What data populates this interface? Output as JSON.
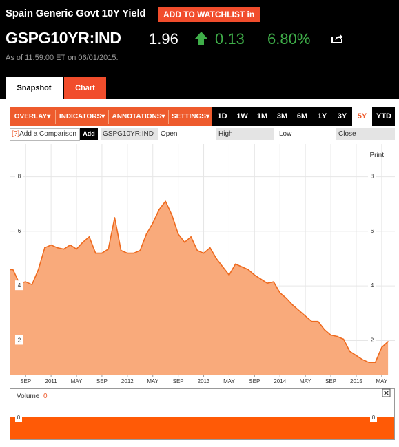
{
  "header": {
    "title": "Spain Generic Govt 10Y Yield",
    "watchlist_label": "ADD TO WATCHLIST in",
    "ticker": "GSPG10YR:IND",
    "price": "1.96",
    "change": "0.13",
    "percent": "6.80%",
    "as_of": "As of 11:59:00 ET on 06/01/2015.",
    "up_color": "#3fae49",
    "icons": [
      "up-arrow-icon",
      "share-icon"
    ]
  },
  "tabs": [
    {
      "label": "Snapshot",
      "active": false
    },
    {
      "label": "Chart",
      "active": true
    }
  ],
  "toolbar": {
    "menus": [
      "OVERLAY",
      "INDICATORS",
      "ANNOTATIONS",
      "SETTINGS"
    ],
    "ranges": [
      "1D",
      "1W",
      "1M",
      "3M",
      "6M",
      "1Y",
      "3Y",
      "5Y",
      "YTD"
    ],
    "active_range": "5Y",
    "accent": "#ee5b2d"
  },
  "legend_row": {
    "compare_placeholder": "Add a Comparison",
    "compare_icon": "[?]",
    "add_label": "Add",
    "symbol": "GSPG10YR:IND",
    "open": "Open",
    "high": "High",
    "low": "Low",
    "close": "Close"
  },
  "print_label": "Print",
  "volume_label": "Volume",
  "volume_value": "0",
  "chart_data": [
    {
      "type": "area",
      "series": [
        {
          "values_note_free": true,
          "x": [
            "2010-07",
            "2010-08",
            "2010-09",
            "2010-10",
            "2010-11",
            "2010-12",
            "2011-01",
            "2011-02",
            "2011-03",
            "2011-04",
            "2011-05",
            "2011-06",
            "2011-07",
            "2011-08",
            "2011-09",
            "2011-10",
            "2011-11",
            "2011-12",
            "2012-01",
            "2012-02",
            "2012-03",
            "2012-04",
            "2012-05",
            "2012-06",
            "2012-07",
            "2012-08",
            "2012-09",
            "2012-10",
            "2012-11",
            "2012-12",
            "2013-01",
            "2013-02",
            "2013-03",
            "2013-04",
            "2013-05",
            "2013-06",
            "2013-07",
            "2013-08",
            "2013-09",
            "2013-10",
            "2013-11",
            "2013-12",
            "2014-01",
            "2014-02",
            "2014-03",
            "2014-04",
            "2014-05",
            "2014-06",
            "2014-07",
            "2014-08",
            "2014-09",
            "2014-10",
            "2014-11",
            "2014-12",
            "2015-01",
            "2015-02",
            "2015-03",
            "2015-04",
            "2015-05",
            "2015-06"
          ],
          "y": [
            4.6,
            4.1,
            4.15,
            4.05,
            4.6,
            5.4,
            5.5,
            5.4,
            5.35,
            5.5,
            5.35,
            5.6,
            5.8,
            5.2,
            5.2,
            5.35,
            6.5,
            5.3,
            5.2,
            5.2,
            5.3,
            5.9,
            6.3,
            6.8,
            7.1,
            6.6,
            5.9,
            5.6,
            5.8,
            5.3,
            5.2,
            5.4,
            5.0,
            4.7,
            4.4,
            4.8,
            4.7,
            4.6,
            4.4,
            4.25,
            4.1,
            4.15,
            3.75,
            3.55,
            3.3,
            3.1,
            2.9,
            2.7,
            2.7,
            2.4,
            2.2,
            2.15,
            2.05,
            1.6,
            1.45,
            1.3,
            1.2,
            1.2,
            1.75,
            1.96
          ]
        }
      ],
      "ylim": [
        0.75,
        9.2
      ],
      "y_ticks": [
        "2",
        "4",
        "6",
        "8"
      ],
      "x_tick_labels": [
        "SEP",
        "2011",
        "MAY",
        "SEP",
        "2012",
        "MAY",
        "SEP",
        "2013",
        "MAY",
        "SEP",
        "2014",
        "MAY",
        "SEP",
        "2015",
        "MAY"
      ],
      "x_tick_dates": [
        "2010-09",
        "2011-01",
        "2011-05",
        "2011-09",
        "2012-01",
        "2012-05",
        "2012-09",
        "2013-01",
        "2013-05",
        "2013-09",
        "2014-01",
        "2014-05",
        "2014-09",
        "2015-01",
        "2015-05"
      ],
      "line_color": "#ee6a1e",
      "fill_color": "#f9aa7b",
      "grid": true
    },
    {
      "type": "bar",
      "title": "Volume",
      "values": [
        0
      ],
      "y_ticks": [
        "0"
      ],
      "color": "#ff5a06"
    }
  ]
}
